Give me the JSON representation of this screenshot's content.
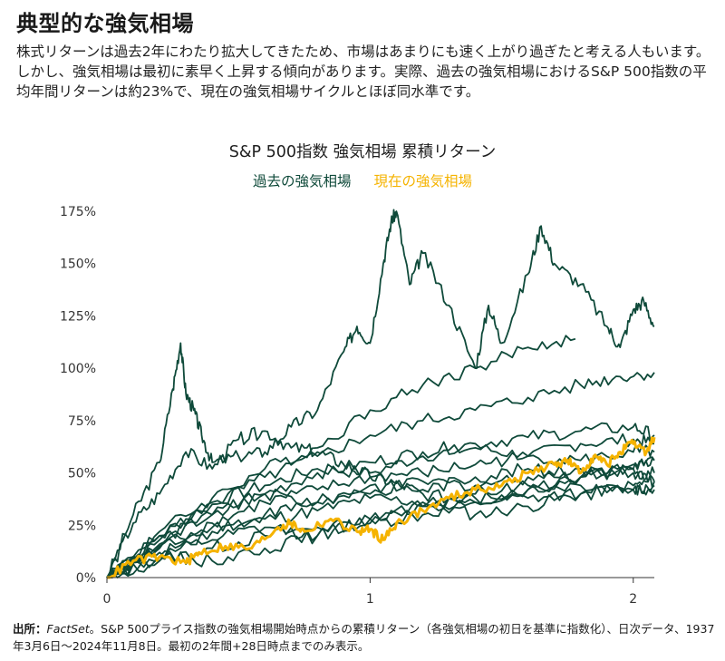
{
  "page": {
    "title": "典型的な強気相場",
    "intro": "株式リターンは過去2年にわたり拡大してきたため、市場はあまりにも速く上がり過ぎたと考える人もいます。しかし、強気相場は最初に素早く上昇する傾向があります。実際、過去の強気相場におけるS&P 500指数の平均年間リターンは約23%で、現在の強気相場サイクルとほぼ同水準です。",
    "source_label": "出所：",
    "source_name": "FactSet",
    "source_text": "。S&P 500プライス指数の強気相場開始時点からの累積リターン（各強気相場の初日を基準に指数化）、日次データ、1937年3月6日～2024年11月8日。最初の2年間+28日時点までのみ表示。"
  },
  "colors": {
    "historical": "#0f4a3a",
    "current": "#f5b300",
    "axis": "#333333"
  },
  "chart_data": {
    "type": "line",
    "title": "S&P 500指数 強気相場 累積リターン",
    "legend": [
      "過去の強気相場",
      "現在の強気相場"
    ],
    "legend_position": "top-center",
    "xlabel": "",
    "ylabel": "",
    "xlim": [
      0,
      2.08
    ],
    "ylim": [
      0,
      175
    ],
    "x_ticks": [
      0,
      1,
      2
    ],
    "x_tick_labels": [
      "0",
      "1",
      "2"
    ],
    "y_ticks": [
      0,
      25,
      50,
      75,
      100,
      125,
      150,
      175
    ],
    "y_tick_labels": [
      "0%",
      "25%",
      "50%",
      "75%",
      "100%",
      "125%",
      "150%",
      "175%"
    ],
    "grid": false,
    "series": [
      {
        "group": "historical",
        "x": [
          0,
          0.1,
          0.2,
          0.25,
          0.28,
          0.3,
          0.33,
          0.36,
          0.4,
          0.5,
          0.6,
          0.7,
          0.8,
          0.9,
          0.95,
          1.0,
          1.05,
          1.08,
          1.1,
          1.15,
          1.2,
          1.3,
          1.4,
          1.45,
          1.5,
          1.6,
          1.65,
          1.7,
          1.8,
          1.9,
          1.95,
          2.0,
          2.04,
          2.08
        ],
        "y": [
          0,
          30,
          55,
          90,
          112,
          88,
          80,
          68,
          55,
          58,
          60,
          72,
          80,
          108,
          120,
          112,
          150,
          170,
          175,
          140,
          155,
          130,
          100,
          130,
          112,
          145,
          168,
          150,
          140,
          120,
          110,
          128,
          132,
          120
        ]
      },
      {
        "group": "historical",
        "x": [
          0,
          0.2,
          0.4,
          0.6,
          0.8,
          1.0,
          1.2,
          1.4,
          1.6,
          1.78
        ],
        "y": [
          0,
          22,
          38,
          52,
          62,
          80,
          92,
          100,
          110,
          114
        ]
      },
      {
        "group": "historical",
        "x": [
          0,
          0.2,
          0.4,
          0.6,
          0.8,
          1.0,
          1.2,
          1.4,
          1.6,
          1.8,
          1.95,
          2.08
        ],
        "y": [
          0,
          20,
          35,
          48,
          58,
          68,
          75,
          80,
          86,
          92,
          96,
          98
        ]
      },
      {
        "group": "historical",
        "x": [
          0,
          0.2,
          0.4,
          0.6,
          0.8,
          1.0,
          1.2,
          1.4,
          1.6,
          1.8,
          2.0,
          2.08
        ],
        "y": [
          0,
          18,
          30,
          40,
          50,
          55,
          60,
          64,
          67,
          70,
          72,
          68
        ]
      },
      {
        "group": "historical",
        "x": [
          0,
          0.2,
          0.4,
          0.6,
          0.8,
          1.0,
          1.2,
          1.4,
          1.6,
          1.8,
          2.0,
          2.08
        ],
        "y": [
          0,
          20,
          36,
          44,
          52,
          50,
          58,
          62,
          58,
          64,
          66,
          64
        ]
      },
      {
        "group": "historical",
        "x": [
          0,
          0.2,
          0.4,
          0.6,
          0.8,
          1.0,
          1.2,
          1.4,
          1.6,
          1.8,
          2.0,
          2.08
        ],
        "y": [
          0,
          14,
          26,
          36,
          42,
          48,
          50,
          54,
          58,
          56,
          60,
          60
        ]
      },
      {
        "group": "historical",
        "x": [
          0,
          0.2,
          0.4,
          0.6,
          0.8,
          1.0,
          1.2,
          1.4,
          1.6,
          1.8,
          2.0,
          2.08
        ],
        "y": [
          0,
          16,
          30,
          40,
          36,
          44,
          42,
          48,
          52,
          48,
          54,
          56
        ]
      },
      {
        "group": "historical",
        "x": [
          0,
          0.2,
          0.4,
          0.6,
          0.8,
          1.0,
          1.2,
          1.4,
          1.6,
          1.8,
          2.0,
          2.08
        ],
        "y": [
          0,
          12,
          22,
          30,
          36,
          40,
          46,
          44,
          48,
          52,
          50,
          50
        ]
      },
      {
        "group": "historical",
        "x": [
          0,
          0.2,
          0.4,
          0.6,
          0.8,
          1.0,
          1.2,
          1.4,
          1.6,
          1.8,
          2.0,
          2.08
        ],
        "y": [
          0,
          15,
          24,
          28,
          32,
          38,
          36,
          30,
          34,
          40,
          44,
          46
        ]
      },
      {
        "group": "historical",
        "x": [
          0,
          0.2,
          0.4,
          0.6,
          0.8,
          1.0,
          1.2,
          1.4,
          1.6,
          1.8,
          2.0,
          2.08
        ],
        "y": [
          0,
          10,
          18,
          24,
          20,
          28,
          34,
          38,
          42,
          44,
          42,
          42
        ]
      },
      {
        "group": "historical",
        "x": [
          0,
          0.2,
          0.4,
          0.6,
          0.8,
          1.0,
          1.2,
          1.4,
          1.6,
          1.8,
          2.0,
          2.08
        ],
        "y": [
          0,
          8,
          14,
          20,
          24,
          26,
          30,
          36,
          38,
          40,
          42,
          44
        ]
      },
      {
        "group": "historical",
        "x": [
          0,
          0.1,
          0.2,
          0.3,
          0.4,
          0.5,
          0.6,
          0.7,
          0.8,
          0.9,
          1.0,
          1.1,
          1.2,
          1.4,
          1.6,
          1.8,
          2.0,
          2.08
        ],
        "y": [
          0,
          26,
          40,
          60,
          52,
          66,
          70,
          62,
          60,
          54,
          48,
          45,
          40,
          36,
          42,
          48,
          52,
          46
        ]
      },
      {
        "group": "historical",
        "x": [
          0,
          0.2,
          0.4,
          0.6,
          0.8,
          1.0,
          1.2,
          1.4,
          1.6,
          1.8,
          2.0,
          2.08
        ],
        "y": [
          0,
          10,
          8,
          14,
          20,
          28,
          34,
          40,
          44,
          48,
          52,
          56
        ]
      },
      {
        "group": "current",
        "name": "現在の強気相場",
        "x": [
          0,
          0.1,
          0.2,
          0.3,
          0.35,
          0.45,
          0.55,
          0.65,
          0.7,
          0.75,
          0.85,
          0.95,
          1.0,
          1.05,
          1.1,
          1.2,
          1.3,
          1.4,
          1.5,
          1.6,
          1.7,
          1.75,
          1.8,
          1.85,
          1.9,
          1.95,
          2.0,
          2.05,
          2.08
        ],
        "y": [
          0,
          8,
          10,
          7,
          12,
          15,
          14,
          24,
          26,
          22,
          28,
          22,
          23,
          18,
          26,
          32,
          38,
          42,
          44,
          50,
          54,
          56,
          50,
          58,
          54,
          60,
          64,
          60,
          67
        ]
      }
    ]
  }
}
